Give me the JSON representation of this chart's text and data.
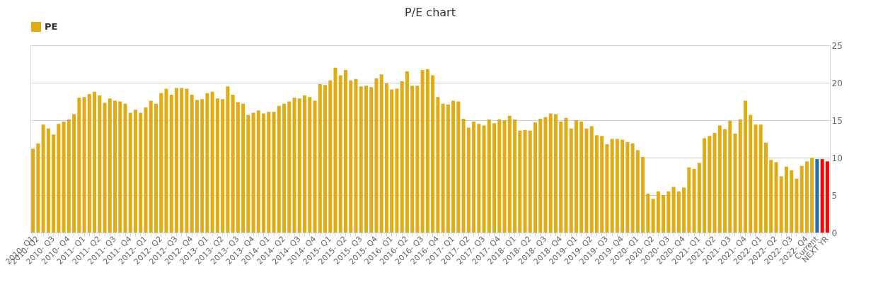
{
  "chart_data": {
    "type": "bar",
    "title": "P/E chart",
    "categories": [
      "2010- Q1",
      "2010- Q2",
      null,
      null,
      "2010- Q3",
      null,
      null,
      "2010- Q4",
      null,
      null,
      "2011- Q1",
      null,
      null,
      "2011- Q2",
      null,
      null,
      "2011- Q3",
      null,
      null,
      "2011- Q4",
      null,
      null,
      "2012- Q1",
      null,
      null,
      "2012- Q2",
      null,
      null,
      "2012- Q3",
      null,
      null,
      "2012- Q4",
      null,
      null,
      "2013- Q1",
      null,
      null,
      "2013- Q2",
      null,
      null,
      "2013- Q3",
      null,
      null,
      "2013- Q4",
      null,
      null,
      "2014- Q1",
      null,
      null,
      "2014- Q2",
      null,
      null,
      "2014- Q3",
      null,
      null,
      "2014- Q4",
      null,
      null,
      "2015- Q1",
      null,
      null,
      "2015- Q2",
      null,
      null,
      "2015- Q3",
      null,
      null,
      "2015- Q4",
      null,
      null,
      "2016- Q1",
      null,
      null,
      "2016- Q2",
      null,
      null,
      "2016- Q3",
      null,
      null,
      "2016- Q4",
      null,
      null,
      "2017- Q1",
      null,
      null,
      "2017- Q2",
      null,
      null,
      "2017- Q3",
      null,
      null,
      "2017- Q4",
      null,
      null,
      "2018- Q1",
      null,
      null,
      "2018- Q2",
      null,
      null,
      "2018- Q3",
      null,
      null,
      "2018- Q4",
      null,
      null,
      "2019- Q1",
      null,
      null,
      "2019- Q2",
      null,
      null,
      "2019- Q3",
      null,
      null,
      "2019- Q4",
      null,
      null,
      "2020- Q1",
      null,
      null,
      "2020- Q2",
      null,
      null,
      "2020- Q3",
      null,
      null,
      "2020- Q4",
      null,
      null,
      "2021- Q1",
      null,
      null,
      "2021- Q2",
      null,
      null,
      "2021- Q3",
      null,
      null,
      "2021- Q4",
      null,
      null,
      "2022- Q1",
      null,
      null,
      "2022- Q2",
      null,
      null,
      "2022- Q3",
      null,
      null,
      "2022- Q4",
      null,
      "Current",
      null,
      "NEXT YR"
    ],
    "series": [
      {
        "name": "PE",
        "color": "#e0ac14",
        "colors": [
          "#e0ac14",
          "#e0ac14",
          "#e0ac14",
          "#e0ac14",
          "#e0ac14",
          "#e0ac14",
          "#e0ac14",
          "#e0ac14",
          "#e0ac14",
          "#e0ac14",
          "#e0ac14",
          "#e0ac14",
          "#e0ac14",
          "#e0ac14",
          "#e0ac14",
          "#e0ac14",
          "#e0ac14",
          "#e0ac14",
          "#e0ac14",
          "#e0ac14",
          "#e0ac14",
          "#e0ac14",
          "#e0ac14",
          "#e0ac14",
          "#e0ac14",
          "#e0ac14",
          "#e0ac14",
          "#e0ac14",
          "#e0ac14",
          "#e0ac14",
          "#e0ac14",
          "#e0ac14",
          "#e0ac14",
          "#e0ac14",
          "#e0ac14",
          "#e0ac14",
          "#e0ac14",
          "#e0ac14",
          "#e0ac14",
          "#e0ac14",
          "#e0ac14",
          "#e0ac14",
          "#e0ac14",
          "#e0ac14",
          "#e0ac14",
          "#e0ac14",
          "#e0ac14",
          "#e0ac14",
          "#e0ac14",
          "#e0ac14",
          "#e0ac14",
          "#e0ac14",
          "#e0ac14",
          "#e0ac14",
          "#e0ac14",
          "#e0ac14",
          "#e0ac14",
          "#e0ac14",
          "#e0ac14",
          "#e0ac14",
          "#e0ac14",
          "#e0ac14",
          "#e0ac14",
          "#e0ac14",
          "#e0ac14",
          "#e0ac14",
          "#e0ac14",
          "#e0ac14",
          "#e0ac14",
          "#e0ac14",
          "#e0ac14",
          "#e0ac14",
          "#e0ac14",
          "#e0ac14",
          "#e0ac14",
          "#e0ac14",
          "#e0ac14",
          "#e0ac14",
          "#e0ac14",
          "#e0ac14",
          "#e0ac14",
          "#e0ac14",
          "#e0ac14",
          "#e0ac14",
          "#e0ac14",
          "#e0ac14",
          "#e0ac14",
          "#e0ac14",
          "#e0ac14",
          "#e0ac14",
          "#e0ac14",
          "#e0ac14",
          "#e0ac14",
          "#e0ac14",
          "#e0ac14",
          "#e0ac14",
          "#e0ac14",
          "#e0ac14",
          "#e0ac14",
          "#e0ac14",
          "#e0ac14",
          "#e0ac14",
          "#e0ac14",
          "#e0ac14",
          "#e0ac14",
          "#e0ac14",
          "#e0ac14",
          "#e0ac14",
          "#e0ac14",
          "#e0ac14",
          "#e0ac14",
          "#e0ac14",
          "#e0ac14",
          "#e0ac14",
          "#e0ac14",
          "#e0ac14",
          "#e0ac14",
          "#e0ac14",
          "#e0ac14",
          "#e0ac14",
          "#e0ac14",
          "#e0ac14",
          "#e0ac14",
          "#e0ac14",
          "#e0ac14",
          "#e0ac14",
          "#e0ac14",
          "#e0ac14",
          "#e0ac14",
          "#e0ac14",
          "#e0ac14",
          "#e0ac14",
          "#e0ac14",
          "#e0ac14",
          "#e0ac14",
          "#e0ac14",
          "#e0ac14",
          "#e0ac14",
          "#e0ac14",
          "#e0ac14",
          "#e0ac14",
          "#e0ac14",
          "#e0ac14",
          "#e0ac14",
          "#e0ac14",
          "#e0ac14",
          "#e0ac14",
          "#e0ac14",
          "#e0ac14",
          "#e0ac14",
          "#e0ac14",
          "#e0ac14",
          "#e0ac14",
          "#1f6fa8",
          "#ff0000",
          "#ff0000"
        ],
        "values": [
          11.2,
          11.9,
          14.4,
          13.9,
          13.1,
          14.5,
          14.8,
          15.1,
          15.8,
          18.0,
          18.1,
          18.5,
          18.8,
          18.3,
          17.3,
          17.9,
          17.6,
          17.5,
          17.2,
          16.0,
          16.4,
          16.0,
          16.7,
          17.6,
          17.2,
          18.6,
          19.2,
          18.4,
          19.3,
          19.3,
          19.2,
          18.4,
          17.7,
          17.8,
          18.6,
          18.8,
          17.9,
          17.8,
          19.5,
          18.4,
          17.4,
          17.2,
          15.7,
          16.0,
          16.3,
          15.9,
          16.1,
          16.1,
          16.9,
          17.2,
          17.5,
          18.0,
          17.9,
          18.3,
          18.1,
          17.6,
          19.8,
          19.7,
          20.3,
          22.0,
          21.0,
          21.7,
          20.3,
          20.5,
          19.5,
          19.6,
          19.4,
          20.6,
          21.1,
          19.9,
          19.1,
          19.2,
          20.2,
          21.5,
          19.6,
          19.6,
          21.7,
          21.8,
          21.0,
          18.1,
          17.2,
          17.1,
          17.6,
          17.5,
          15.2,
          14.0,
          14.8,
          14.5,
          14.3,
          15.1,
          14.6,
          15.1,
          15.0,
          15.6,
          15.1,
          13.6,
          13.7,
          13.6,
          14.7,
          15.2,
          15.4,
          15.9,
          15.8,
          14.8,
          15.3,
          13.9,
          15.0,
          14.8,
          13.9,
          14.2,
          13.0,
          12.9,
          11.8,
          12.5,
          12.5,
          12.4,
          12.1,
          11.9,
          11.0,
          10.1,
          5.2,
          4.5,
          5.5,
          5.0,
          5.5,
          6.1,
          5.5,
          6.0,
          8.7,
          8.5,
          9.3,
          12.6,
          12.9,
          13.3,
          14.3,
          13.8,
          14.9,
          13.2,
          15.1,
          17.6,
          15.7,
          14.4,
          14.4,
          12.0,
          9.7,
          9.4,
          7.5,
          8.8,
          8.3,
          7.2,
          8.9,
          9.5,
          10.0,
          9.8,
          9.8,
          9.5
        ]
      }
    ],
    "ylim": [
      0,
      25
    ],
    "yticks": [
      0,
      5,
      10,
      15,
      20,
      25
    ],
    "grid": "y",
    "legend": "top"
  }
}
